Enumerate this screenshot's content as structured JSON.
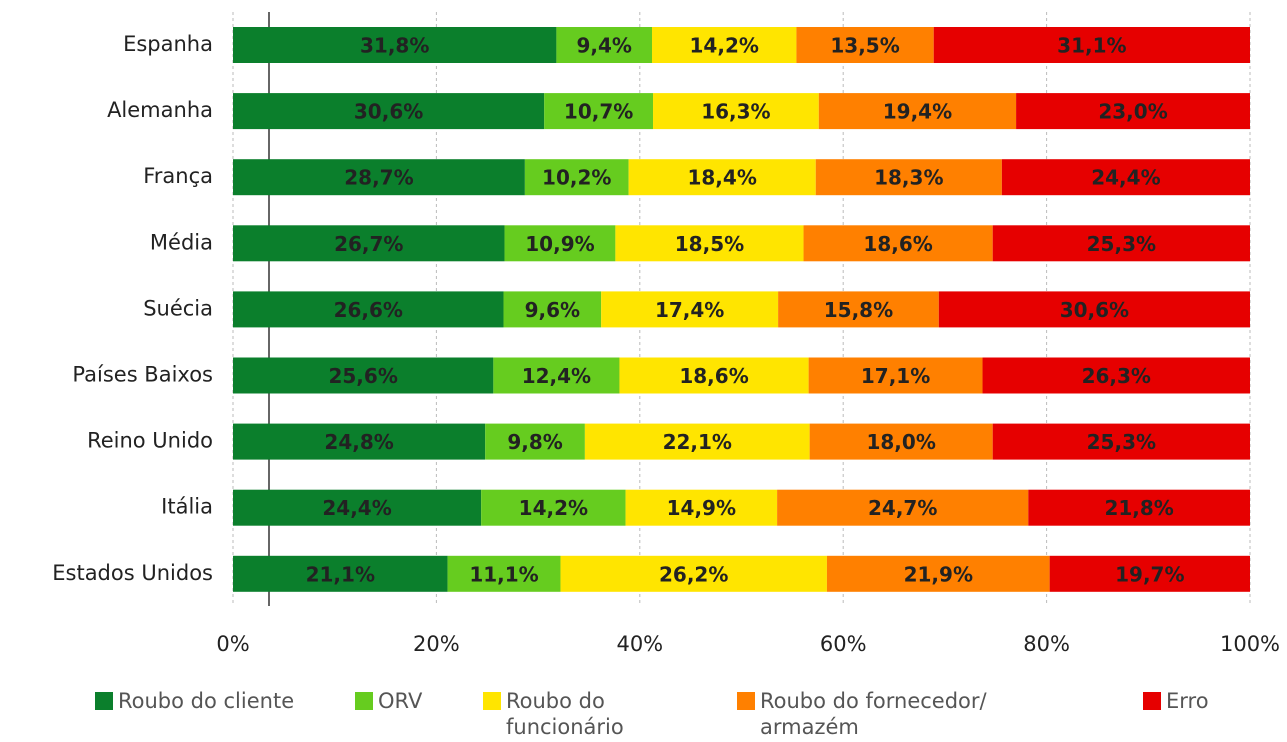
{
  "chart_data": {
    "type": "stacked-bar-horizontal",
    "categories": [
      "Espanha",
      "Alemanha",
      "França",
      "Média",
      "Suécia",
      "Países Baixos",
      "Reino Unido",
      "Itália",
      "Estados Unidos"
    ],
    "series": [
      {
        "name": "Roubo do cliente",
        "color": "#0b7f2c",
        "values": [
          31.8,
          30.6,
          28.7,
          26.7,
          26.6,
          25.6,
          24.8,
          24.4,
          21.1
        ],
        "value_labels": [
          "31,8%",
          "30,6%",
          "28,7%",
          "26,7%",
          "26,6%",
          "25,6%",
          "24,8%",
          "24,4%",
          "21,1%"
        ]
      },
      {
        "name": "ORV",
        "color": "#66cc1f",
        "values": [
          9.4,
          10.7,
          10.2,
          10.9,
          9.6,
          12.4,
          9.8,
          14.2,
          11.1
        ],
        "value_labels": [
          "9,4%",
          "10,7%",
          "10,2%",
          "10,9%",
          "9,6%",
          "12,4%",
          "9,8%",
          "14,2%",
          "11,1%"
        ]
      },
      {
        "name": "Roubo do funcionário",
        "color": "#ffe500",
        "values": [
          14.2,
          16.3,
          18.4,
          18.5,
          17.4,
          18.6,
          22.1,
          14.9,
          26.2
        ],
        "value_labels": [
          "14,2%",
          "16,3%",
          "18,4%",
          "18,5%",
          "17,4%",
          "18,6%",
          "22,1%",
          "14,9%",
          "26,2%"
        ]
      },
      {
        "name": "Roubo do fornecedor/ armazém",
        "color": "#ff8000",
        "values": [
          13.5,
          19.4,
          18.3,
          18.6,
          15.8,
          17.1,
          18.0,
          24.7,
          21.9
        ],
        "value_labels": [
          "13,5%",
          "19,4%",
          "18,3%",
          "18,6%",
          "15,8%",
          "17,1%",
          "18,0%",
          "24,7%",
          "21,9%"
        ]
      },
      {
        "name": "Erro",
        "color": "#e60000",
        "values": [
          31.1,
          23.0,
          24.4,
          25.3,
          30.6,
          26.3,
          25.3,
          21.8,
          19.7
        ],
        "value_labels": [
          "31,1%",
          "23,0%",
          "24,4%",
          "25,3%",
          "30,6%",
          "26,3%",
          "25,3%",
          "21,8%",
          "19,7%"
        ]
      }
    ],
    "xlim": [
      0,
      100
    ],
    "xticks": [
      {
        "value": 0,
        "label": "0%"
      },
      {
        "value": 20,
        "label": "20%"
      },
      {
        "value": 40,
        "label": "40%"
      },
      {
        "value": 60,
        "label": "60%"
      },
      {
        "value": 80,
        "label": "80%"
      },
      {
        "value": 100,
        "label": "100%"
      }
    ],
    "grid": true
  }
}
